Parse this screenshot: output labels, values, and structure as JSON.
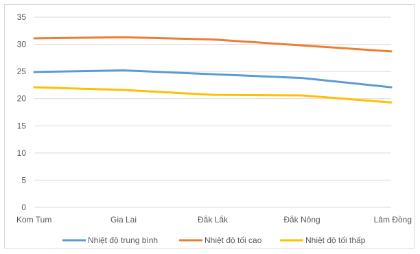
{
  "chart_data": {
    "type": "line",
    "categories": [
      "Kom Tum",
      "Gia Lai",
      "Đắk Lắk",
      "Đắk Nông",
      "Lâm Đồng"
    ],
    "ylim": [
      0,
      35
    ],
    "yticks": [
      0,
      5,
      10,
      15,
      20,
      25,
      30,
      35
    ],
    "grid": true,
    "legend_position": "bottom",
    "series": [
      {
        "name": "Nhiệt độ trung bình",
        "color": "#5b9bd5",
        "values": [
          24.9,
          25.2,
          24.5,
          23.8,
          22.1
        ]
      },
      {
        "name": "Nhiệt độ tối cao",
        "color": "#ed7d31",
        "values": [
          31.1,
          31.3,
          30.9,
          29.8,
          28.7
        ]
      },
      {
        "name": "Nhiệt độ tối thấp",
        "color": "#ffc000",
        "values": [
          22.1,
          21.6,
          20.7,
          20.6,
          19.3
        ]
      }
    ]
  }
}
